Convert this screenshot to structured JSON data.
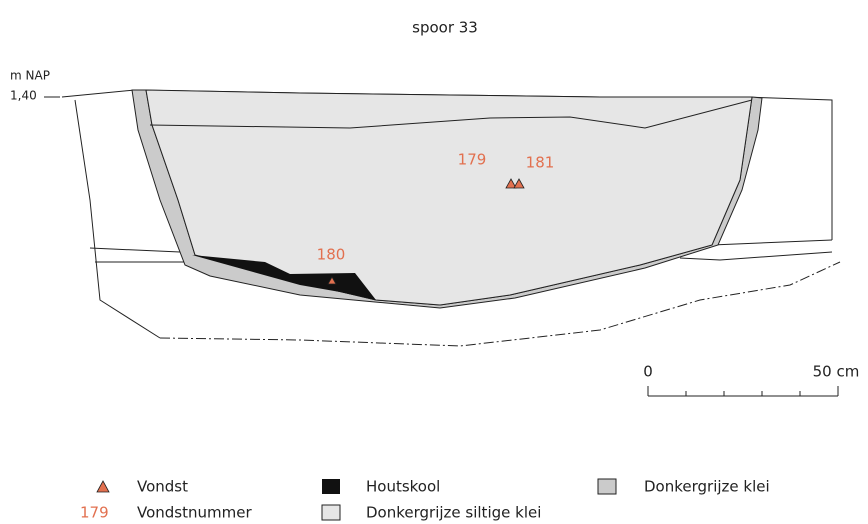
{
  "title": "spoor 33",
  "axis": {
    "unit": "m NAP",
    "level": "1,40"
  },
  "finds": [
    {
      "label": "179"
    },
    {
      "label": "181"
    },
    {
      "label": "180"
    }
  ],
  "scale": {
    "start": "0",
    "end": "50 cm"
  },
  "legend": {
    "find": "Vondst",
    "find_number_sample": "179",
    "find_number": "Vondstnummer",
    "charcoal": "Houtskool",
    "silty_clay": "Donkergrijze siltige klei",
    "clay": "Donkergrijze klei"
  }
}
